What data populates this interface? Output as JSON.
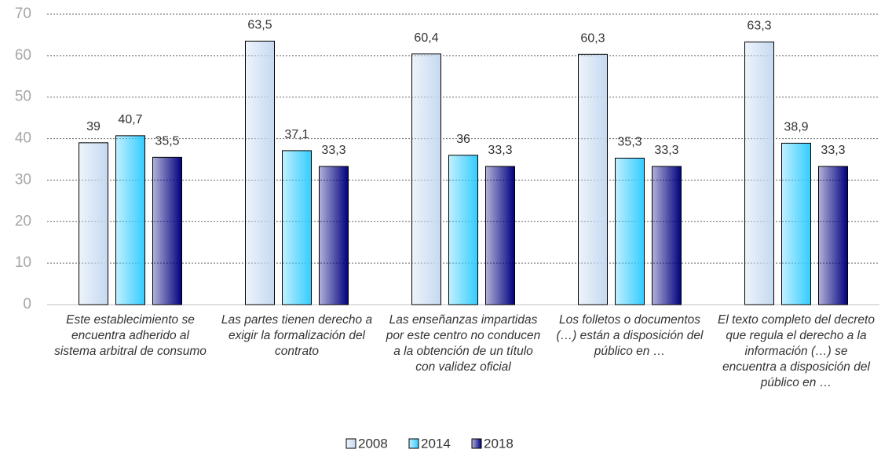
{
  "chart_data": {
    "type": "bar",
    "categories": [
      "Este establecimiento se encuentra adherido al sistema arbitral de consumo",
      "Las partes tienen derecho a exigir la formalización del contrato",
      "Las enseñanzas impartidas por este centro no conducen a la obtención de un título con validez oficial",
      "Los folletos o documentos (…) están a disposición del público en …",
      "El texto completo del decreto que regula el derecho a la información (…) se encuentra a disposición del público en …"
    ],
    "series": [
      {
        "name": "2008",
        "color": "#c5d9f1",
        "values": [
          39,
          63.5,
          60.4,
          60.3,
          63.3
        ],
        "value_labels": [
          "39",
          "63,5",
          "60,4",
          "60,3",
          "63,3"
        ]
      },
      {
        "name": "2014",
        "color": "#33ccff",
        "values": [
          40.7,
          37.1,
          36,
          35.3,
          38.9
        ],
        "value_labels": [
          "40,7",
          "37,1",
          "36",
          "35,3",
          "38,9"
        ]
      },
      {
        "name": "2018",
        "color": "#00007f",
        "values": [
          35.5,
          33.3,
          33.3,
          33.3,
          33.3
        ],
        "value_labels": [
          "35,5",
          "33,3",
          "33,3",
          "33,3",
          "33,3"
        ]
      }
    ],
    "ylim": [
      0,
      70
    ],
    "yticks": [
      0,
      10,
      20,
      30,
      40,
      50,
      60,
      70
    ],
    "grid": true,
    "legend": "bottom"
  }
}
